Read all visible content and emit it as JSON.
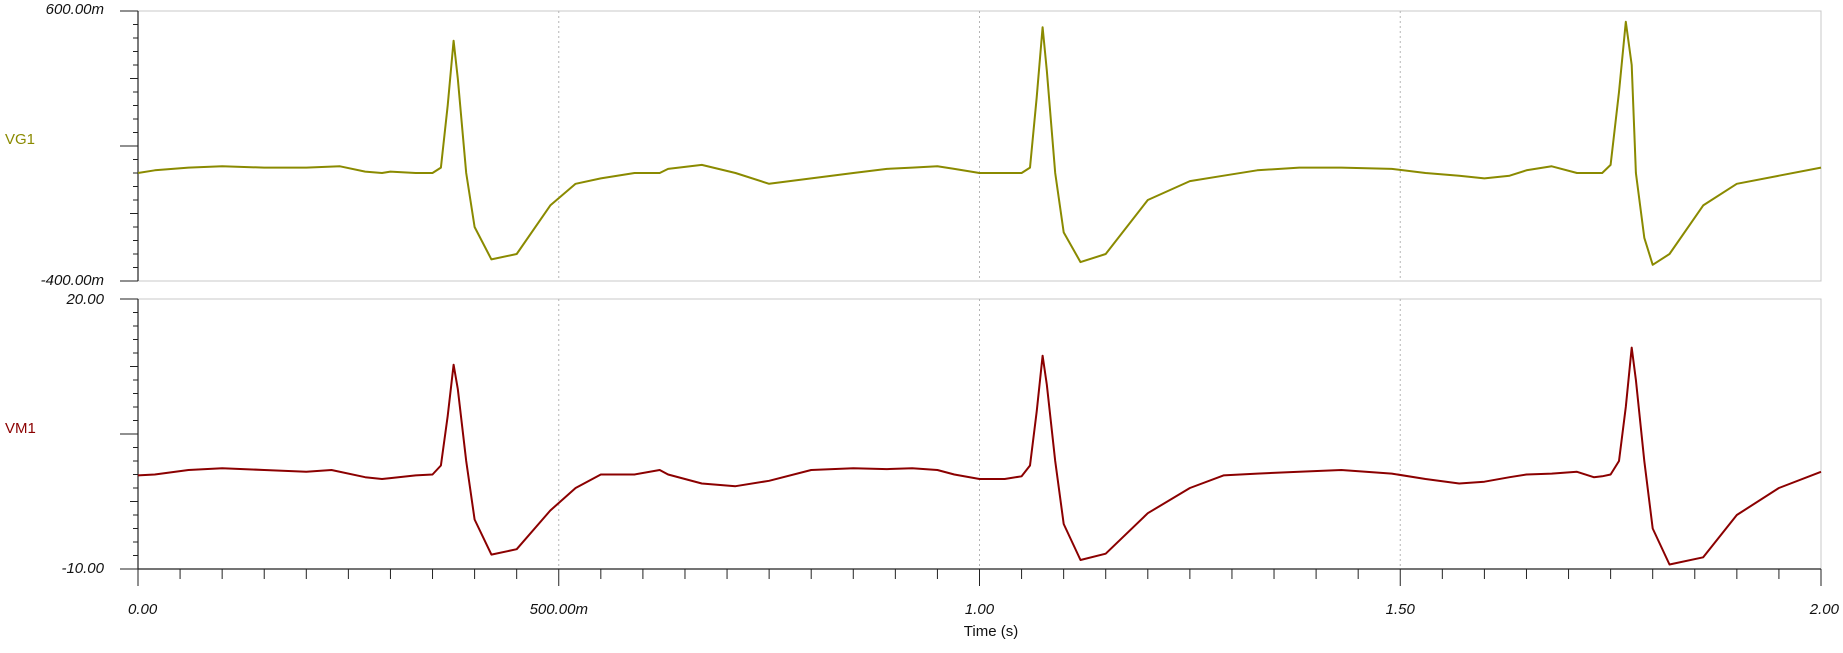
{
  "chart_data": {
    "type": "line",
    "xlabel": "Time (s)",
    "xlim": [
      0,
      2
    ],
    "x_ticks": [
      {
        "value": 0,
        "label": "0.00"
      },
      {
        "value": 0.5,
        "label": "500.00m"
      },
      {
        "value": 1.0,
        "label": "1.00"
      },
      {
        "value": 1.5,
        "label": "1.50"
      },
      {
        "value": 2.0,
        "label": "2.00"
      }
    ],
    "grid": "vertical dotted at major x ticks",
    "panels": [
      {
        "name": "VG1",
        "color": "#8a8a00",
        "ylim": [
          -0.4,
          0.6
        ],
        "ytop_label": "600.00m",
        "ybottom_label": "-400.00m",
        "x": [
          0,
          0.02,
          0.06,
          0.1,
          0.15,
          0.2,
          0.24,
          0.27,
          0.29,
          0.3,
          0.33,
          0.35,
          0.36,
          0.368,
          0.375,
          0.38,
          0.39,
          0.4,
          0.42,
          0.45,
          0.49,
          0.52,
          0.55,
          0.59,
          0.62,
          0.63,
          0.67,
          0.71,
          0.75,
          0.8,
          0.85,
          0.89,
          0.92,
          0.95,
          0.97,
          1.0,
          1.03,
          1.05,
          1.06,
          1.068,
          1.075,
          1.08,
          1.09,
          1.1,
          1.12,
          1.15,
          1.2,
          1.25,
          1.29,
          1.33,
          1.38,
          1.43,
          1.49,
          1.53,
          1.57,
          1.6,
          1.63,
          1.65,
          1.68,
          1.71,
          1.73,
          1.74,
          1.75,
          1.76,
          1.768,
          1.775,
          1.78,
          1.79,
          1.8,
          1.82,
          1.86,
          1.9,
          1.95,
          2.0
        ],
        "y": [
          0.0,
          0.01,
          0.02,
          0.025,
          0.02,
          0.02,
          0.025,
          0.005,
          0.0,
          0.005,
          0.0,
          0.0,
          0.02,
          0.25,
          0.49,
          0.35,
          0.0,
          -0.2,
          -0.32,
          -0.3,
          -0.12,
          -0.04,
          -0.02,
          0.0,
          0.0,
          0.015,
          0.03,
          0.0,
          -0.04,
          -0.02,
          0.0,
          0.015,
          0.02,
          0.025,
          0.015,
          0.0,
          0.0,
          0.0,
          0.02,
          0.28,
          0.54,
          0.38,
          0.0,
          -0.22,
          -0.33,
          -0.3,
          -0.1,
          -0.03,
          -0.01,
          0.01,
          0.02,
          0.02,
          0.015,
          0.0,
          -0.01,
          -0.02,
          -0.01,
          0.01,
          0.025,
          0.0,
          0.0,
          0.0,
          0.03,
          0.3,
          0.56,
          0.4,
          0.0,
          -0.24,
          -0.34,
          -0.3,
          -0.12,
          -0.04,
          -0.01,
          0.02
        ]
      },
      {
        "name": "VM1",
        "color": "#8b0000",
        "ylim": [
          -10,
          20
        ],
        "ytop_label": "20.00",
        "ybottom_label": "-10.00",
        "x": [
          0,
          0.02,
          0.06,
          0.1,
          0.15,
          0.2,
          0.23,
          0.27,
          0.29,
          0.3,
          0.33,
          0.35,
          0.36,
          0.368,
          0.375,
          0.38,
          0.39,
          0.4,
          0.42,
          0.45,
          0.49,
          0.52,
          0.55,
          0.59,
          0.62,
          0.63,
          0.67,
          0.71,
          0.75,
          0.8,
          0.85,
          0.89,
          0.92,
          0.95,
          0.97,
          1.0,
          1.03,
          1.05,
          1.06,
          1.068,
          1.075,
          1.08,
          1.09,
          1.1,
          1.12,
          1.15,
          1.2,
          1.25,
          1.29,
          1.33,
          1.38,
          1.43,
          1.49,
          1.53,
          1.57,
          1.6,
          1.63,
          1.65,
          1.68,
          1.71,
          1.73,
          1.74,
          1.75,
          1.76,
          1.768,
          1.775,
          1.78,
          1.79,
          1.8,
          1.82,
          1.86,
          1.9,
          1.95,
          2.0
        ],
        "y": [
          0.4,
          0.5,
          1.0,
          1.2,
          1.0,
          0.8,
          1.0,
          0.2,
          0.0,
          0.1,
          0.4,
          0.5,
          1.5,
          7.0,
          12.7,
          10.0,
          2.0,
          -4.5,
          -8.4,
          -7.8,
          -3.5,
          -1.0,
          0.5,
          0.5,
          1.0,
          0.5,
          -0.5,
          -0.8,
          -0.2,
          1.0,
          1.2,
          1.1,
          1.2,
          1.0,
          0.5,
          0.0,
          0.0,
          0.3,
          1.5,
          7.5,
          13.7,
          10.5,
          2.0,
          -5.0,
          -9.0,
          -8.3,
          -3.8,
          -1.0,
          0.4,
          0.6,
          0.8,
          1.0,
          0.6,
          0.0,
          -0.5,
          -0.3,
          0.2,
          0.5,
          0.6,
          0.8,
          0.2,
          0.3,
          0.5,
          2.0,
          8.0,
          14.6,
          11.0,
          2.0,
          -5.5,
          -9.5,
          -8.7,
          -4.0,
          -1.0,
          0.8
        ]
      }
    ]
  }
}
